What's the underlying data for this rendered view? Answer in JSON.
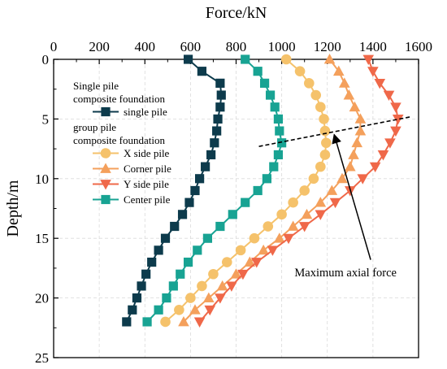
{
  "chart_data": {
    "type": "line",
    "xlabel": "Force/kN",
    "ylabel": "Depth/m",
    "x_axis_position": "top",
    "y_axis_inverted": true,
    "xlim": [
      0,
      1600
    ],
    "ylim": [
      0,
      25
    ],
    "x_ticks": [
      "0",
      "200",
      "400",
      "600",
      "800",
      "1000",
      "1200",
      "1400",
      "1600"
    ],
    "y_ticks": [
      "0",
      "5",
      "10",
      "15",
      "20",
      "25"
    ],
    "grid": true,
    "legend_position": "top-left",
    "legend_groups": [
      {
        "heading": [
          "Single pile",
          "composite foundation"
        ],
        "series_index": [
          0
        ]
      },
      {
        "heading": [
          "group pile",
          "composite foundation"
        ],
        "series_index": [
          1,
          2,
          3,
          4
        ]
      }
    ],
    "series": [
      {
        "name": "single pile",
        "color": "#0d3b4c",
        "marker": "square",
        "points": [
          [
            590,
            0
          ],
          [
            650,
            1
          ],
          [
            730,
            2
          ],
          [
            735,
            3
          ],
          [
            730,
            4
          ],
          [
            720,
            5
          ],
          [
            715,
            6
          ],
          [
            705,
            7
          ],
          [
            690,
            8
          ],
          [
            665,
            9
          ],
          [
            640,
            10
          ],
          [
            620,
            11
          ],
          [
            595,
            12
          ],
          [
            565,
            13
          ],
          [
            530,
            14
          ],
          [
            490,
            15
          ],
          [
            460,
            16
          ],
          [
            430,
            17
          ],
          [
            405,
            18
          ],
          [
            385,
            19
          ],
          [
            365,
            20
          ],
          [
            345,
            21
          ],
          [
            320,
            22
          ]
        ]
      },
      {
        "name": "X side pile",
        "color": "#f5c26b",
        "marker": "circle",
        "points": [
          [
            1020,
            0
          ],
          [
            1080,
            1
          ],
          [
            1120,
            2
          ],
          [
            1150,
            3
          ],
          [
            1170,
            4
          ],
          [
            1185,
            5
          ],
          [
            1190,
            6
          ],
          [
            1195,
            7
          ],
          [
            1190,
            8
          ],
          [
            1170,
            9
          ],
          [
            1140,
            10
          ],
          [
            1100,
            11
          ],
          [
            1050,
            12
          ],
          [
            1000,
            13
          ],
          [
            940,
            14
          ],
          [
            880,
            15
          ],
          [
            820,
            16
          ],
          [
            760,
            17
          ],
          [
            700,
            18
          ],
          [
            650,
            19
          ],
          [
            600,
            20
          ],
          [
            550,
            21
          ],
          [
            490,
            22
          ]
        ]
      },
      {
        "name": "Corner pile",
        "color": "#f4a05c",
        "marker": "triangle-up",
        "points": [
          [
            1210,
            0
          ],
          [
            1250,
            1
          ],
          [
            1275,
            2
          ],
          [
            1295,
            3
          ],
          [
            1320,
            4
          ],
          [
            1345,
            5
          ],
          [
            1345,
            6
          ],
          [
            1330,
            7
          ],
          [
            1315,
            8
          ],
          [
            1300,
            9
          ],
          [
            1265,
            10
          ],
          [
            1220,
            11
          ],
          [
            1170,
            12
          ],
          [
            1110,
            13
          ],
          [
            1050,
            14
          ],
          [
            990,
            15
          ],
          [
            920,
            16
          ],
          [
            860,
            17
          ],
          [
            800,
            18
          ],
          [
            740,
            19
          ],
          [
            680,
            20
          ],
          [
            620,
            21
          ],
          [
            570,
            22
          ]
        ]
      },
      {
        "name": "Y side pile",
        "color": "#ef6849",
        "marker": "triangle-down",
        "points": [
          [
            1380,
            0
          ],
          [
            1400,
            1
          ],
          [
            1430,
            2
          ],
          [
            1470,
            3
          ],
          [
            1500,
            4
          ],
          [
            1510,
            5
          ],
          [
            1500,
            6
          ],
          [
            1475,
            7
          ],
          [
            1445,
            8
          ],
          [
            1410,
            9
          ],
          [
            1355,
            10
          ],
          [
            1300,
            11
          ],
          [
            1235,
            12
          ],
          [
            1170,
            13
          ],
          [
            1100,
            14
          ],
          [
            1030,
            15
          ],
          [
            960,
            16
          ],
          [
            890,
            17
          ],
          [
            830,
            18
          ],
          [
            780,
            19
          ],
          [
            730,
            20
          ],
          [
            685,
            21
          ],
          [
            640,
            22
          ]
        ]
      },
      {
        "name": "Center pile",
        "color": "#18a393",
        "marker": "square",
        "points": [
          [
            840,
            0
          ],
          [
            895,
            1
          ],
          [
            925,
            2
          ],
          [
            950,
            3
          ],
          [
            970,
            4
          ],
          [
            985,
            5
          ],
          [
            990,
            6
          ],
          [
            1000,
            7
          ],
          [
            985,
            8
          ],
          [
            965,
            9
          ],
          [
            935,
            10
          ],
          [
            895,
            11
          ],
          [
            840,
            12
          ],
          [
            785,
            13
          ],
          [
            730,
            14
          ],
          [
            675,
            15
          ],
          [
            630,
            16
          ],
          [
            590,
            17
          ],
          [
            555,
            18
          ],
          [
            525,
            19
          ],
          [
            495,
            20
          ],
          [
            460,
            21
          ],
          [
            410,
            22
          ]
        ]
      }
    ],
    "annotations": [
      {
        "type": "dashed-line",
        "color": "#000000",
        "points": [
          [
            900,
            7.3
          ],
          [
            1570,
            4.8
          ]
        ]
      },
      {
        "type": "arrow-text",
        "text": "Maximum axial force",
        "text_anchor_data": [
          1280,
          18.2
        ],
        "arrow_from": [
          1390,
          16.8
        ],
        "arrow_to": [
          1230,
          6.3
        ]
      }
    ]
  }
}
